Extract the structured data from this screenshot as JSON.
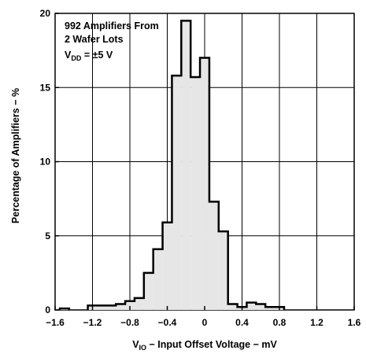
{
  "chart_data": {
    "type": "histogram",
    "xlabel": {
      "prefix": "V",
      "subscript": "IO",
      "rest": " − Input Offset Voltage − mV"
    },
    "ylabel": "Percentage of Amplifiers − %",
    "xlim": [
      -1.6,
      1.6
    ],
    "ylim": [
      0,
      20
    ],
    "xticks": [
      -1.6,
      -1.2,
      -0.8,
      -0.4,
      0,
      0.4,
      0.8,
      1.2,
      1.6
    ],
    "xtick_labels": [
      "−1.6",
      "−1.2",
      "−0.8",
      "−0.4",
      "0",
      "0.4",
      "0.8",
      "1.2",
      "1.6"
    ],
    "yticks": [
      0,
      5,
      10,
      15,
      20
    ],
    "ytick_labels": [
      "0",
      "5",
      "10",
      "15",
      "20"
    ],
    "grid": true,
    "annotation": {
      "line1": "992 Amplifiers From",
      "line2": "2 Wafer Lots",
      "line3_prefix": "V",
      "line3_subscript": "DD",
      "line3_rest": " = ±5 V"
    },
    "bin_width": 0.1,
    "bins_left_edges": [
      -1.55,
      -1.25,
      -1.15,
      -1.05,
      -0.95,
      -0.85,
      -0.75,
      -0.65,
      -0.55,
      -0.45,
      -0.35,
      -0.25,
      -0.15,
      -0.05,
      0.05,
      0.15,
      0.25,
      0.35,
      0.45,
      0.55,
      0.65,
      0.75
    ],
    "values": [
      0.1,
      0.3,
      0.3,
      0.3,
      0.4,
      0.6,
      0.8,
      2.5,
      4.1,
      5.9,
      15.8,
      19.5,
      15.7,
      17.0,
      7.3,
      5.3,
      0.4,
      0.2,
      0.5,
      0.4,
      0.2,
      0.2
    ],
    "fill_color": "#e6e6e6",
    "line_color": "#000000"
  }
}
